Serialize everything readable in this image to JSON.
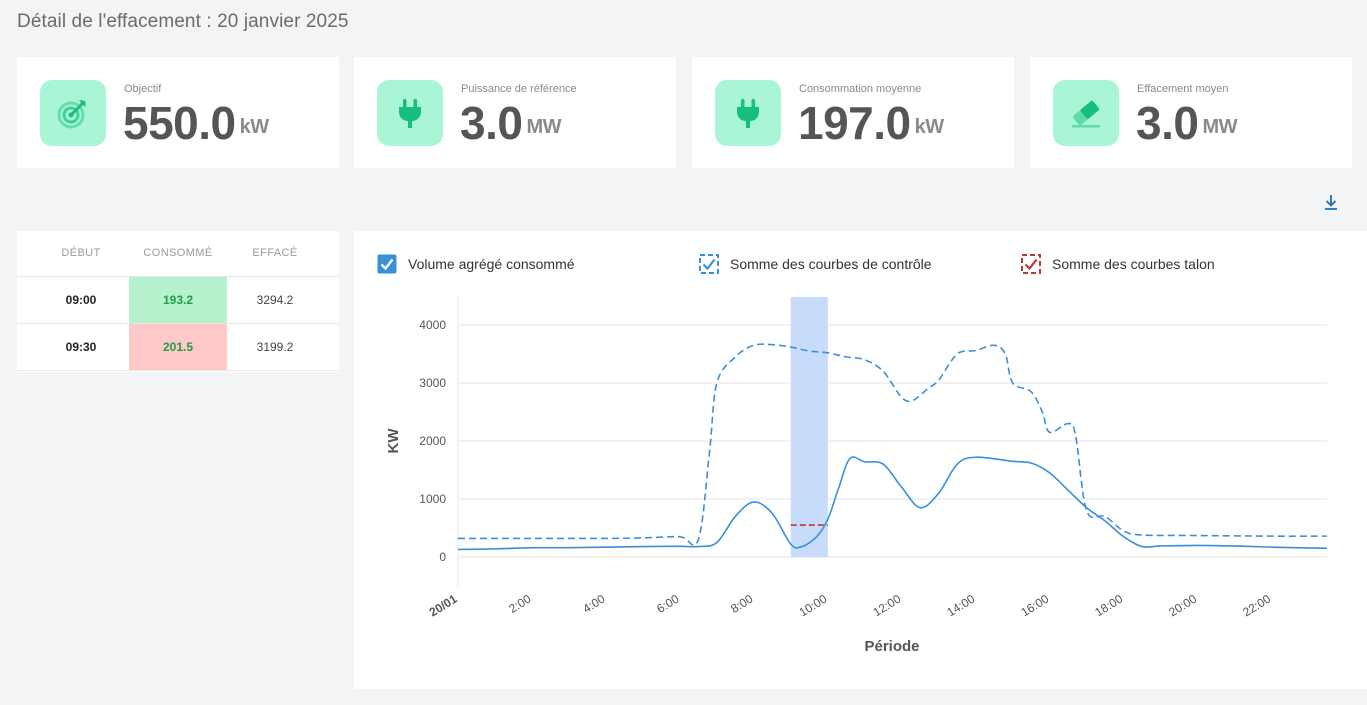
{
  "page": {
    "title": "Détail de l'effacement : 20 janvier 2025"
  },
  "kpis": [
    {
      "label": "Objectif",
      "value": "550.0",
      "unit": "kW",
      "icon": "target-icon"
    },
    {
      "label": "Puissance de référence",
      "value": "3.0",
      "unit": "MW",
      "icon": "plug-icon"
    },
    {
      "label": "Consommation moyenne",
      "value": "197.0",
      "unit": "kW",
      "icon": "plug-icon"
    },
    {
      "label": "Effacement moyen",
      "value": "3.0",
      "unit": "MW",
      "icon": "eraser-icon"
    }
  ],
  "table": {
    "headers": {
      "start": "DÉBUT",
      "consumed": "CONSOMMÉ",
      "erased": "EFFACÉ"
    },
    "rows": [
      {
        "start": "09:00",
        "consumed": "193.2",
        "erased": "3294.2",
        "status_color": "#b7f2cf"
      },
      {
        "start": "09:30",
        "consumed": "201.5",
        "erased": "3199.2",
        "status_color": "#ffc9c9"
      }
    ]
  },
  "colors": {
    "accent": "#3b8fd9",
    "icon_bg": "#a9f5d6",
    "icon_fg": "#16c07a",
    "talon": "#c0392b",
    "highlight": "#c7dbfb"
  },
  "chart_data": {
    "type": "line",
    "xlabel": "Période",
    "ylabel": "KW",
    "ylim": [
      0,
      4000
    ],
    "xlim": [
      0,
      23.5
    ],
    "yticks": [
      0,
      1000,
      2000,
      3000,
      4000
    ],
    "xticks": [
      {
        "x": 0,
        "label": "20/01"
      },
      {
        "x": 2,
        "label": "2:00"
      },
      {
        "x": 4,
        "label": "4:00"
      },
      {
        "x": 6,
        "label": "6:00"
      },
      {
        "x": 8,
        "label": "8:00"
      },
      {
        "x": 10,
        "label": "10:00"
      },
      {
        "x": 12,
        "label": "12:00"
      },
      {
        "x": 14,
        "label": "14:00"
      },
      {
        "x": 16,
        "label": "16:00"
      },
      {
        "x": 18,
        "label": "18:00"
      },
      {
        "x": 20,
        "label": "20:00"
      },
      {
        "x": 22,
        "label": "22:00"
      }
    ],
    "highlight": {
      "x_start": 9,
      "x_end": 10
    },
    "grid": true,
    "legend_position": "top",
    "series": [
      {
        "name": "Volume agrégé consommé",
        "style": "solid",
        "color": "#3b8fd9",
        "points": [
          [
            0,
            130
          ],
          [
            1,
            140
          ],
          [
            2,
            160
          ],
          [
            3,
            160
          ],
          [
            4,
            170
          ],
          [
            5,
            180
          ],
          [
            6,
            185
          ],
          [
            6.5,
            180
          ],
          [
            7,
            250
          ],
          [
            7.5,
            700
          ],
          [
            8,
            950
          ],
          [
            8.5,
            750
          ],
          [
            9,
            220
          ],
          [
            9.3,
            180
          ],
          [
            9.7,
            350
          ],
          [
            10,
            650
          ],
          [
            10.3,
            1200
          ],
          [
            10.6,
            1700
          ],
          [
            11,
            1640
          ],
          [
            11.5,
            1600
          ],
          [
            12,
            1200
          ],
          [
            12.5,
            850
          ],
          [
            13,
            1100
          ],
          [
            13.5,
            1600
          ],
          [
            14,
            1720
          ],
          [
            15,
            1650
          ],
          [
            15.5,
            1620
          ],
          [
            16,
            1450
          ],
          [
            16.5,
            1150
          ],
          [
            17,
            850
          ],
          [
            17.5,
            620
          ],
          [
            18,
            350
          ],
          [
            18.5,
            180
          ],
          [
            19,
            190
          ],
          [
            20,
            200
          ],
          [
            21,
            190
          ],
          [
            22,
            170
          ],
          [
            23.5,
            150
          ]
        ]
      },
      {
        "name": "Somme des courbes de contrôle",
        "style": "dashed",
        "color": "#3b8fd9",
        "points": [
          [
            0,
            320
          ],
          [
            1,
            320
          ],
          [
            2,
            320
          ],
          [
            3,
            320
          ],
          [
            4,
            320
          ],
          [
            5,
            330
          ],
          [
            6,
            350
          ],
          [
            6.5,
            300
          ],
          [
            6.8,
            1800
          ],
          [
            7,
            3000
          ],
          [
            7.5,
            3450
          ],
          [
            8,
            3650
          ],
          [
            8.5,
            3660
          ],
          [
            9,
            3620
          ],
          [
            9.5,
            3550
          ],
          [
            10,
            3520
          ],
          [
            10.5,
            3450
          ],
          [
            11,
            3400
          ],
          [
            11.5,
            3200
          ],
          [
            12,
            2750
          ],
          [
            12.3,
            2700
          ],
          [
            12.7,
            2900
          ],
          [
            13,
            3050
          ],
          [
            13.5,
            3500
          ],
          [
            14,
            3560
          ],
          [
            14.5,
            3650
          ],
          [
            14.8,
            3500
          ],
          [
            15,
            3000
          ],
          [
            15.5,
            2850
          ],
          [
            15.8,
            2500
          ],
          [
            16,
            2150
          ],
          [
            16.5,
            2300
          ],
          [
            16.7,
            2100
          ],
          [
            17,
            800
          ],
          [
            17.5,
            700
          ],
          [
            18,
            450
          ],
          [
            18.5,
            380
          ],
          [
            20,
            370
          ],
          [
            22,
            360
          ],
          [
            23.5,
            360
          ]
        ]
      },
      {
        "name": "Somme des courbes talon",
        "style": "dashed",
        "color": "#c0392b",
        "points": [
          [
            9,
            550
          ],
          [
            10,
            550
          ]
        ]
      }
    ]
  }
}
